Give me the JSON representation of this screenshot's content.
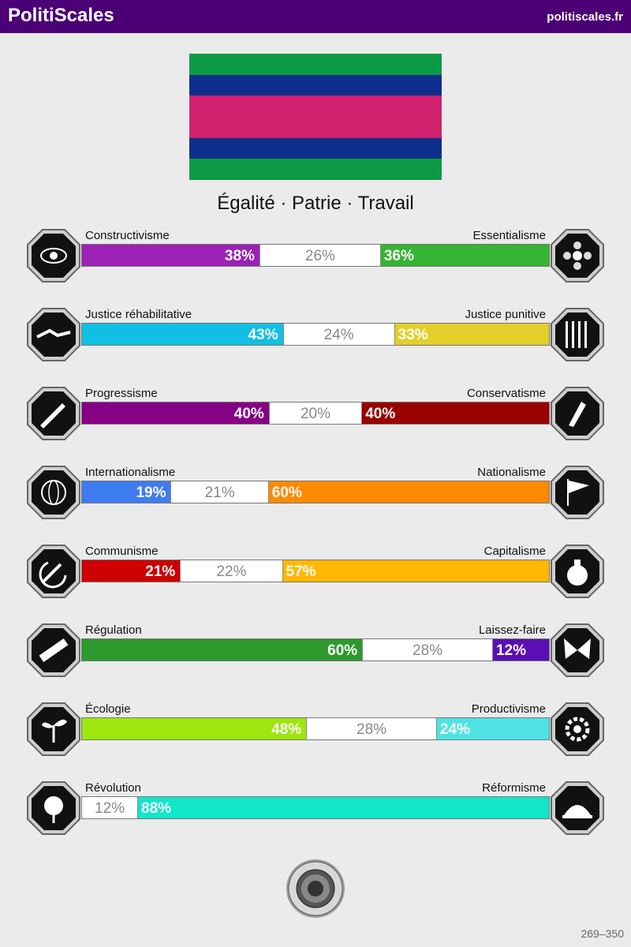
{
  "header": {
    "brand": "PolitiScales",
    "site": "politiscales.fr"
  },
  "flag": {
    "stripes": [
      "#0d9a46",
      "#0d2f8b",
      "#d0216e",
      "#0d2f8b",
      "#0d9a46"
    ]
  },
  "motto": "Égalité · Patrie · Travail",
  "axes": [
    {
      "left_label": "Constructivisme",
      "right_label": "Essentialisme",
      "left_value": 38,
      "neutral_value": 26,
      "right_value": 36,
      "left_text": "38%",
      "neutral_text": "26%",
      "right_text": "36%",
      "left_color": "#9b22b4",
      "right_color": "#34b534",
      "left_icon": "eye-icon",
      "right_icon": "flower-icon"
    },
    {
      "left_label": "Justice réhabilitative",
      "right_label": "Justice punitive",
      "left_value": 43,
      "neutral_value": 24,
      "right_value": 33,
      "left_text": "43%",
      "neutral_text": "24%",
      "right_text": "33%",
      "left_color": "#12bfe4",
      "right_color": "#e4cf2a",
      "left_icon": "handshake-icon",
      "right_icon": "prison-bars-icon"
    },
    {
      "left_label": "Progressisme",
      "right_label": "Conservatisme",
      "left_value": 40,
      "neutral_value": 20,
      "right_value": 40,
      "left_text": "40%",
      "neutral_text": "20%",
      "right_text": "40%",
      "left_color": "#860086",
      "right_color": "#990000",
      "left_icon": "rocket-icon",
      "right_icon": "quill-icon"
    },
    {
      "left_label": "Internationalisme",
      "right_label": "Nationalisme",
      "left_value": 19,
      "neutral_value": 21,
      "right_value": 60,
      "left_text": "19%",
      "neutral_text": "21%",
      "right_text": "60%",
      "left_color": "#3f7bf1",
      "right_color": "#ff8a00",
      "left_icon": "globe-icon",
      "right_icon": "flag-icon"
    },
    {
      "left_label": "Communisme",
      "right_label": "Capitalisme",
      "left_value": 21,
      "neutral_value": 22,
      "right_value": 57,
      "left_text": "21%",
      "neutral_text": "22%",
      "right_text": "57%",
      "left_color": "#cc0000",
      "right_color": "#ffb800",
      "left_icon": "hammer-sickle-icon",
      "right_icon": "money-bag-icon"
    },
    {
      "left_label": "Régulation",
      "right_label": "Laissez-faire",
      "left_value": 60,
      "neutral_value": 28,
      "right_value": 12,
      "left_text": "60%",
      "neutral_text": "28%",
      "right_text": "12%",
      "left_color": "#2d9a2d",
      "right_color": "#5a0fb4",
      "left_icon": "ruler-icon",
      "right_icon": "butterfly-icon"
    },
    {
      "left_label": "Écologie",
      "right_label": "Productivisme",
      "left_value": 48,
      "neutral_value": 28,
      "right_value": 24,
      "left_text": "48%",
      "neutral_text": "28%",
      "right_text": "24%",
      "left_color": "#9de60e",
      "right_color": "#4de3e6",
      "left_icon": "sprout-icon",
      "right_icon": "gear-icon"
    },
    {
      "left_label": "Révolution",
      "right_label": "Réformisme",
      "left_value": 0,
      "neutral_value": 12,
      "right_value": 88,
      "left_text": "",
      "neutral_text": "12%",
      "right_text": "88%",
      "left_color": "#777777",
      "right_color": "#12e6c8",
      "left_icon": "rose-icon",
      "right_icon": "parliament-icon"
    }
  ],
  "footer": {
    "range": "269–350",
    "seal_icon": "seal-icon"
  }
}
